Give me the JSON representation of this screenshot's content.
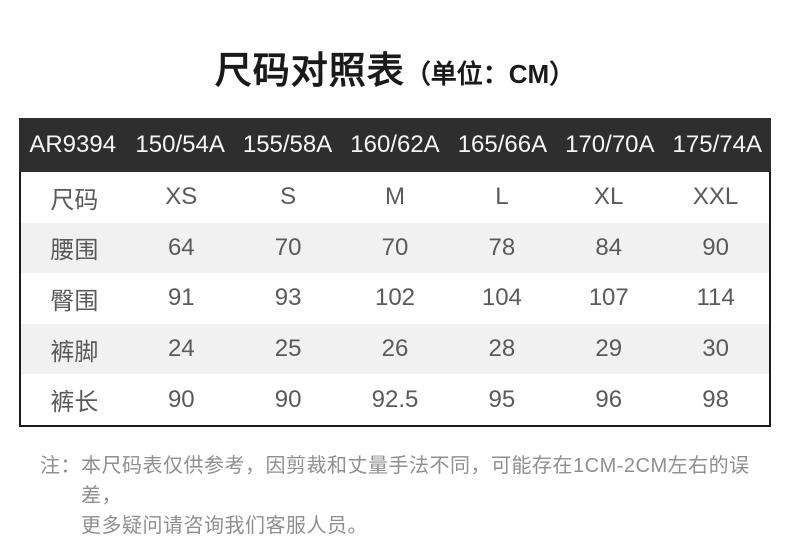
{
  "page": {
    "title": "尺码对照表",
    "title_unit": "（单位：CM）"
  },
  "table": {
    "header": [
      "AR9394",
      "150/54A",
      "155/58A",
      "160/62A",
      "165/66A",
      "170/70A",
      "175/74A"
    ],
    "rows": [
      {
        "label": "尺码",
        "values": [
          "XS",
          "S",
          "M",
          "L",
          "XL",
          "XXL"
        ]
      },
      {
        "label": "腰围",
        "values": [
          "64",
          "70",
          "70",
          "78",
          "84",
          "90"
        ]
      },
      {
        "label": "臀围",
        "values": [
          "91",
          "93",
          "102",
          "104",
          "107",
          "114"
        ]
      },
      {
        "label": "裤脚",
        "values": [
          "24",
          "25",
          "26",
          "28",
          "29",
          "30"
        ]
      },
      {
        "label": "裤长",
        "values": [
          "90",
          "90",
          "92.5",
          "95",
          "96",
          "98"
        ]
      }
    ]
  },
  "note": {
    "prefix": "注：",
    "line1": "本尺码表仅供参考，因剪裁和丈量手法不同，可能存在1CM-2CM左右的误差，",
    "line2": "更多疑问请咨询我们客服人员。"
  },
  "colors": {
    "header_bg": "#2e2e2e",
    "header_text": "#f5f5f5",
    "stripe_bg": "#f1f1f1",
    "body_text": "#5a5a5a",
    "border": "#1c1c1c",
    "note_text": "#8f8f8f",
    "title_text": "#1a1a1a"
  }
}
